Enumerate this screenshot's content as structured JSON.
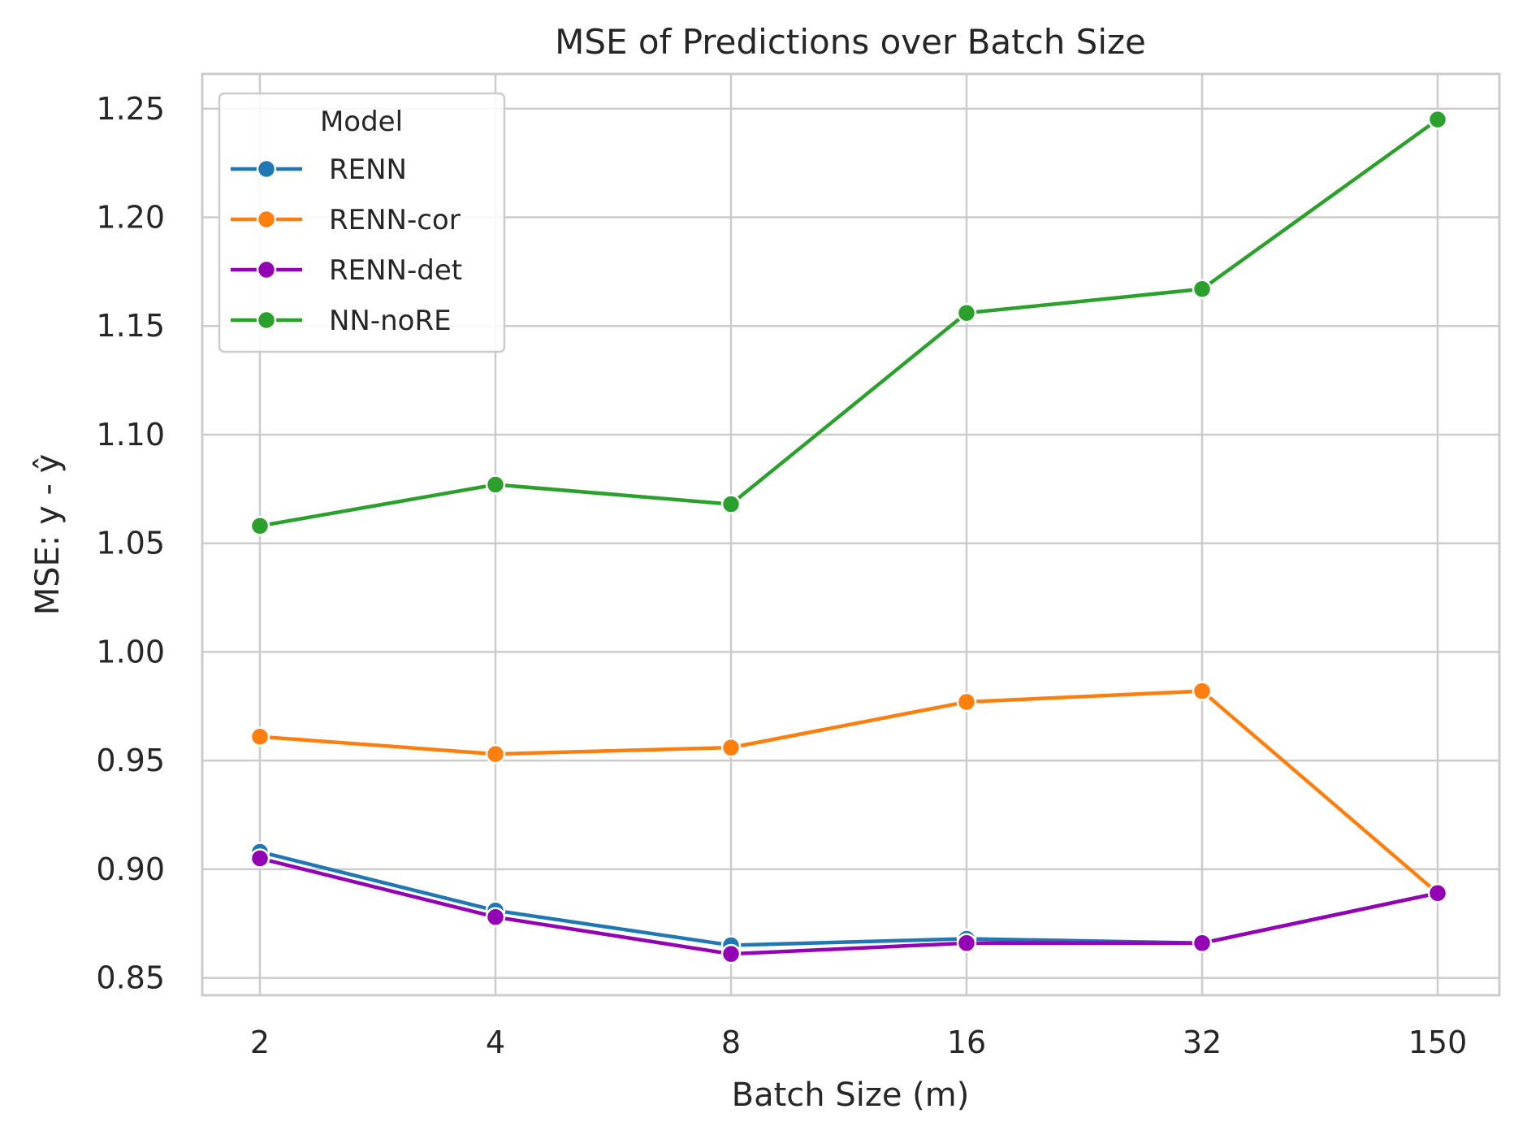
{
  "chart_data": {
    "type": "line",
    "title": "MSE of Predictions over Batch Size",
    "xlabel": "Batch Size (m)",
    "ylabel": "MSE: y - ŷ",
    "categories": [
      "2",
      "4",
      "8",
      "16",
      "32",
      "150"
    ],
    "ylim": [
      0.842,
      1.266
    ],
    "yticks": [
      "0.85",
      "0.90",
      "0.95",
      "1.00",
      "1.05",
      "1.10",
      "1.15",
      "1.20",
      "1.25"
    ],
    "grid": true,
    "legend": {
      "title": "Model",
      "position": "top-left"
    },
    "series": [
      {
        "name": "RENN",
        "color": "#1f77b4",
        "values": [
          0.908,
          0.881,
          0.865,
          0.868,
          0.866,
          0.889
        ]
      },
      {
        "name": "RENN-cor",
        "color": "#ff7f0e",
        "values": [
          0.961,
          0.953,
          0.956,
          0.977,
          0.982,
          0.889
        ]
      },
      {
        "name": "RENN-det",
        "color": "#9400b3",
        "values": [
          0.905,
          0.878,
          0.861,
          0.866,
          0.866,
          0.889
        ]
      },
      {
        "name": "NN-noRE",
        "color": "#2ca02c",
        "values": [
          1.058,
          1.077,
          1.068,
          1.156,
          1.167,
          1.245
        ]
      }
    ]
  }
}
